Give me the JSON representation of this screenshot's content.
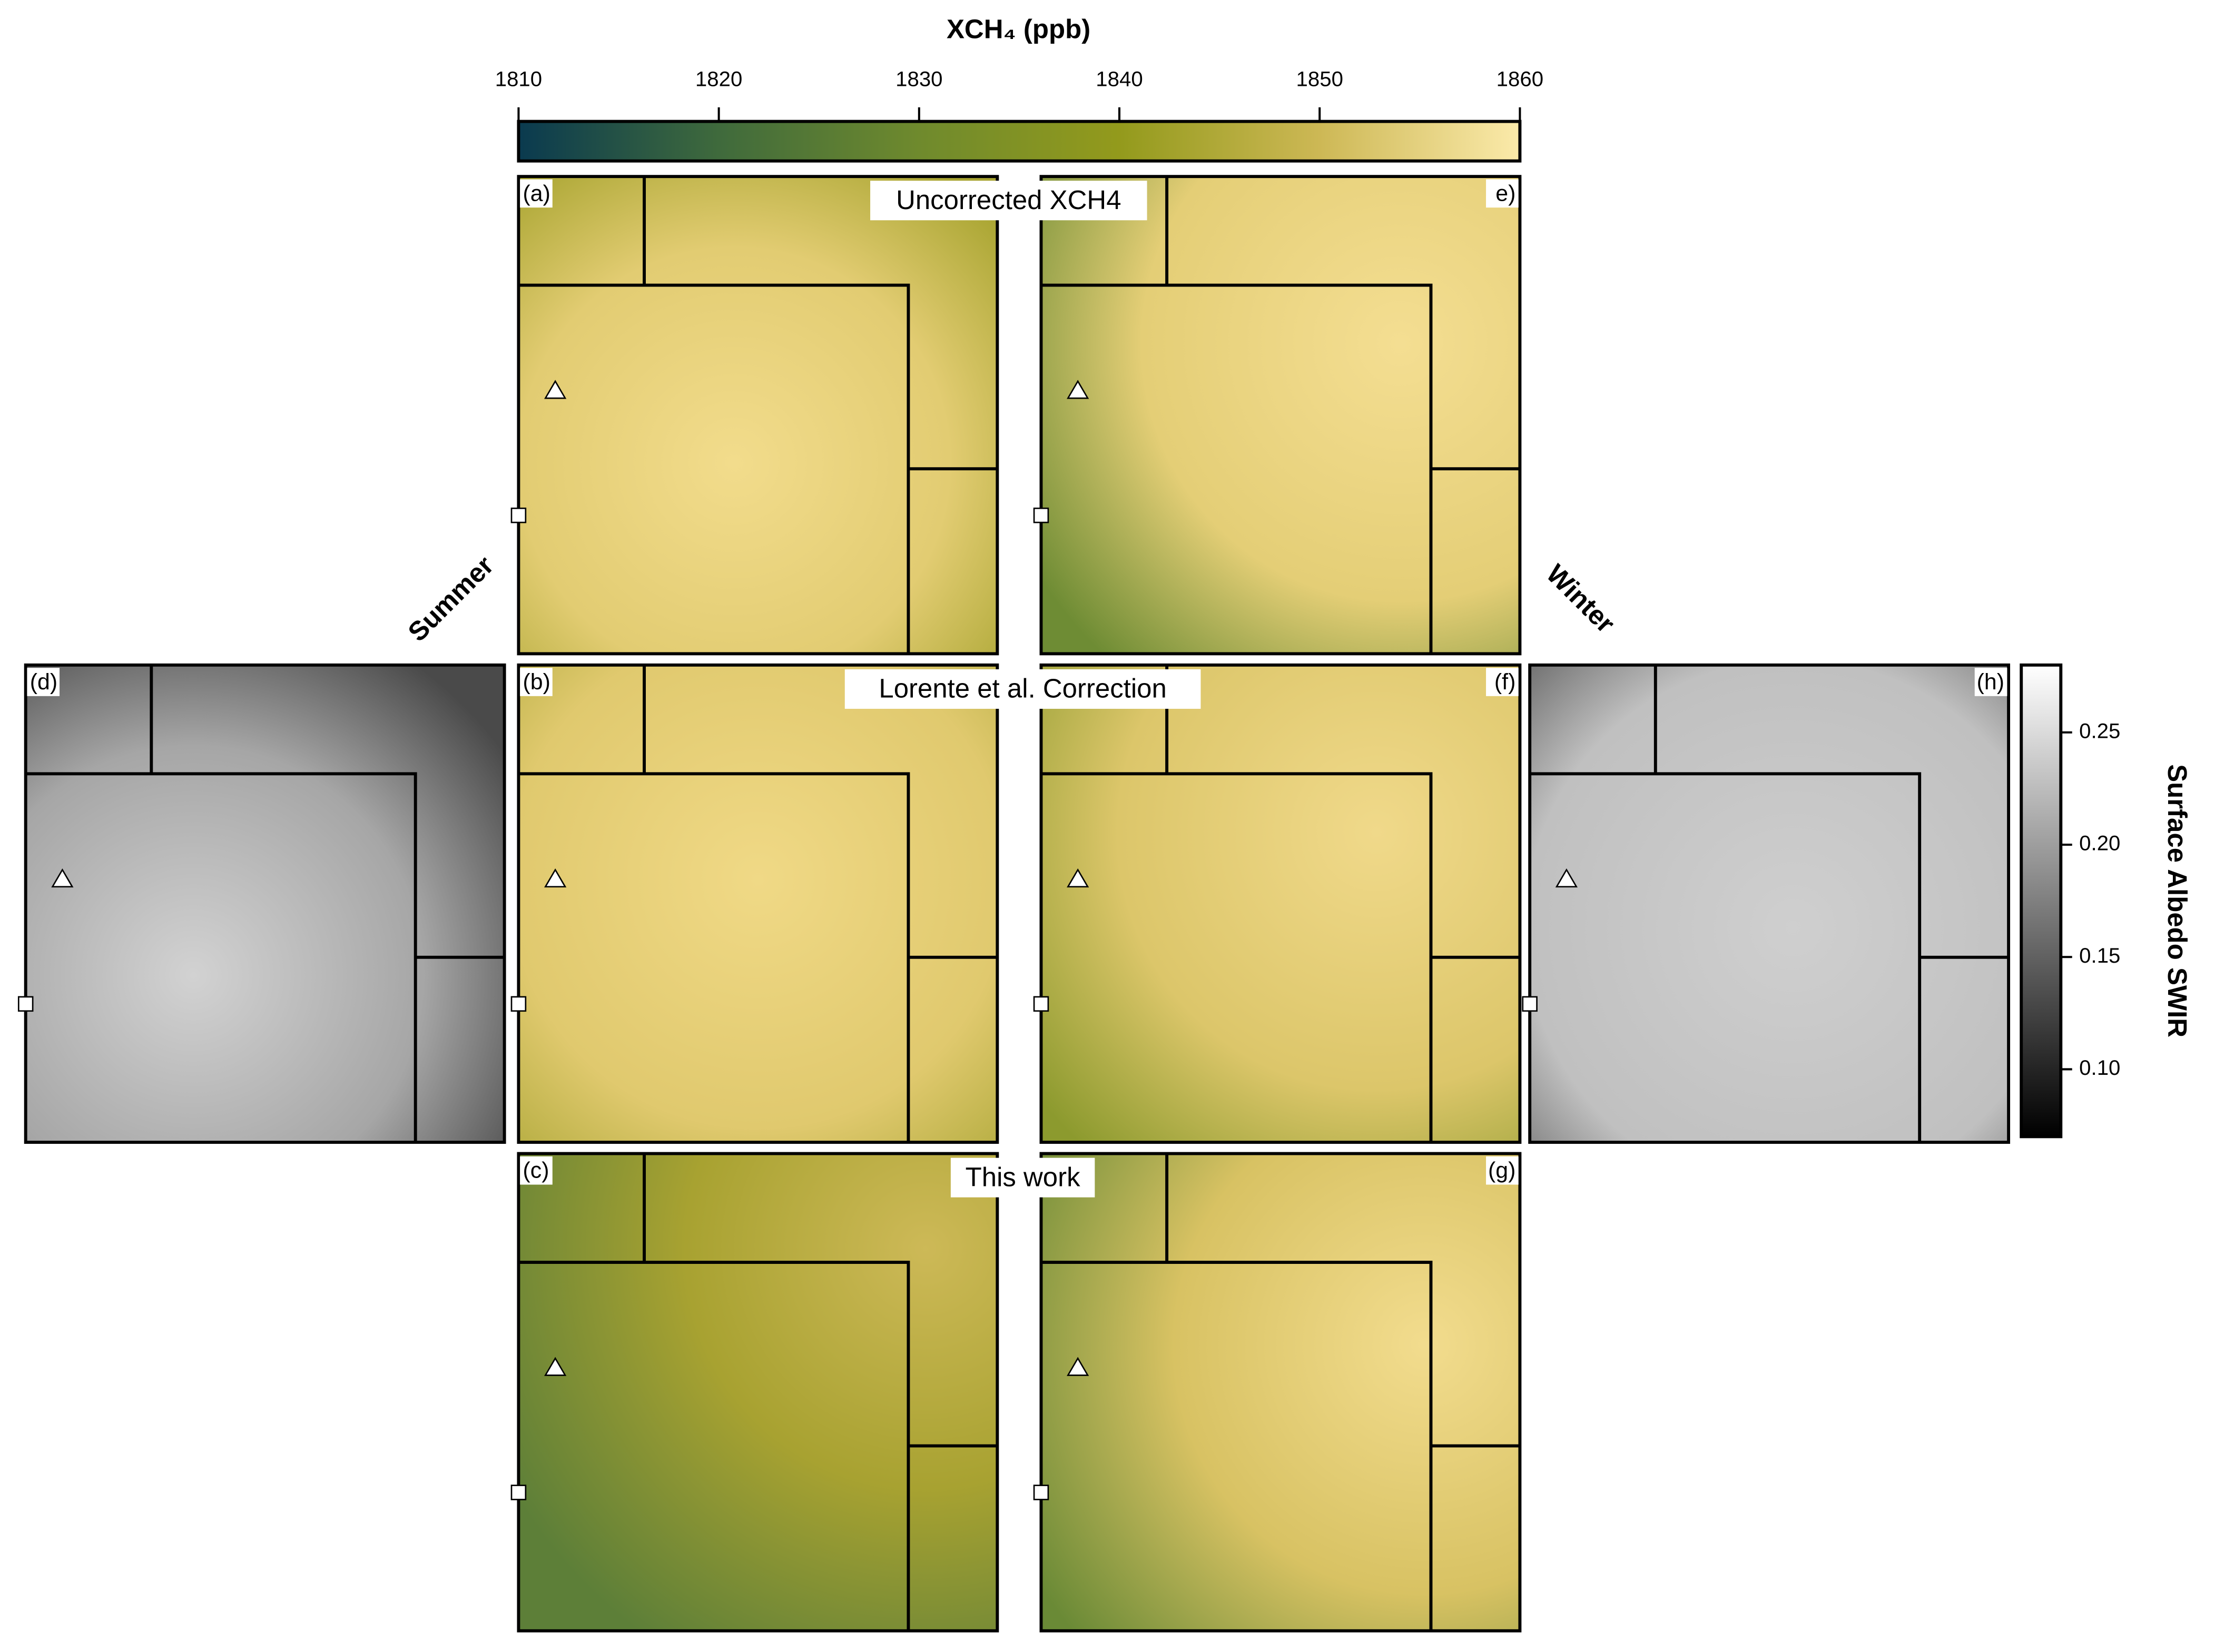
{
  "top_colorbar": {
    "title": "XCH₄ (ppb)",
    "clim": [
      1810,
      1860
    ],
    "ticks": [
      1810,
      1820,
      1830,
      1840,
      1850,
      1860
    ],
    "colors": [
      "#0a3a4f",
      "#3f6a3c",
      "#6f8a2d",
      "#939a1c",
      "#cdb855",
      "#fbeaaa"
    ]
  },
  "right_colorbar": {
    "title": "Surface Albedo SWIR",
    "clim": [
      0.07,
      0.28
    ],
    "ticks": [
      {
        "value": 0.1,
        "label": "0.10"
      },
      0.15,
      {
        "value": 0.2,
        "label": "0.20"
      },
      0.25
    ],
    "colors": [
      "#000000",
      "#ffffff"
    ]
  },
  "row_titles": [
    "Uncorrected XCH4",
    "Lorente et al. Correction",
    "This work"
  ],
  "side_labels": [
    "Summer",
    "Winter"
  ],
  "panels": [
    "(a)",
    "(b)",
    "(c)",
    "(d)",
    "e)",
    "(f)",
    "(g)",
    "(h)"
  ]
}
